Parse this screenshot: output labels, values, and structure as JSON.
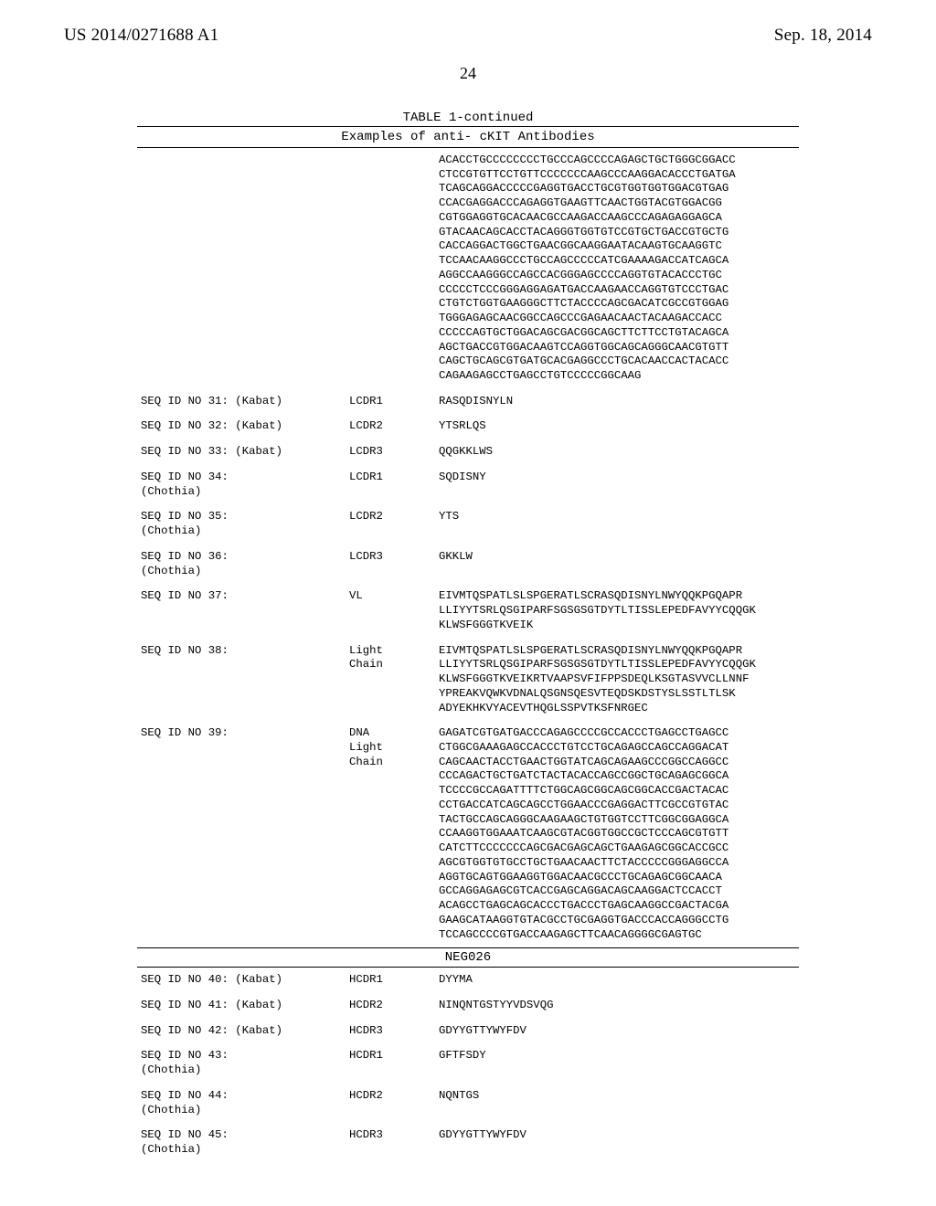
{
  "header": {
    "left": "US 2014/0271688 A1",
    "right": "Sep. 18, 2014"
  },
  "page_number": "24",
  "table_title": "TABLE 1-continued",
  "table_subtitle": "Examples of anti- cKIT Antibodies",
  "top_block_lines": [
    "ACACCTGCCCCCCCCTGCCCAGCCCCAGAGCTGCTGGGCGGACC",
    "CTCCGTGTTCCTGTTCCCCCCCAAGCCCAAGGACACCCTGATGA",
    "TCAGCAGGACCCCCGAGGTGACCTGCGTGGTGGTGGACGTGAG",
    "CCACGAGGACCCAGAGGTGAAGTTCAACTGGTACGTGGACGG",
    "CGTGGAGGTGCACAACGCCAAGACCAAGCCCAGAGAGGAGCA",
    "GTACAACAGCACCTACAGGGTGGTGTCCGTGCTGACCGTGCTG",
    "CACCAGGACTGGCTGAACGGCAAGGAATACAAGTGCAAGGTC",
    "TCCAACAAGGCCCTGCCAGCCCCCATCGAAAAGACCATCAGCA",
    "AGGCCAAGGGCCAGCCACGGGAGCCCCAGGTGTACACCCTGC",
    "CCCCCTCCCGGGAGGAGATGACCAAGAACCAGGTGTCCCTGAC",
    "CTGTCTGGTGAAGGGCTTCTACCCCAGCGACATCGCCGTGGAG",
    "TGGGAGAGCAACGGCCAGCCCGAGAACAACTACAAGACCACC",
    "CCCCCAGTGCTGGACAGCGACGGCAGCTTCTTCCTGTACAGCA",
    "AGCTGACCGTGGACAAGTCCAGGTGGCAGCAGGGCAACGTGTT",
    "CAGCTGCAGCGTGATGCACGAGGCCCTGCACAACCACTACACC",
    "CAGAAGAGCCTGAGCCTGTCCCCCGGCAAG"
  ],
  "rows_a": [
    {
      "id": "SEQ ID NO 31: (Kabat)",
      "region": "LCDR1",
      "seq": "RASQDISNYLN"
    },
    {
      "id": "SEQ ID NO 32: (Kabat)",
      "region": "LCDR2",
      "seq": "YTSRLQS"
    },
    {
      "id": "SEQ ID NO 33: (Kabat)",
      "region": "LCDR3",
      "seq": "QQGKKLWS"
    },
    {
      "id": "SEQ ID NO 34:\n(Chothia)",
      "region": "LCDR1",
      "seq": "SQDISNY"
    },
    {
      "id": "SEQ ID NO 35:\n(Chothia)",
      "region": "LCDR2",
      "seq": "YTS"
    },
    {
      "id": "SEQ ID NO 36:\n(Chothia)",
      "region": "LCDR3",
      "seq": "GKKLW"
    },
    {
      "id": "SEQ ID NO 37:",
      "region": "VL",
      "seq": "EIVMTQSPATLSLSPGERATLSCRASQDISNYLNWYQQKPGQAPR\nLLIYYTSRLQSGIPARFSGSGSGTDYTLTISSLEPEDFAVYYCQQGK\nKLWSFGGGTKVEIK"
    },
    {
      "id": "SEQ ID NO 38:",
      "region": "Light\nChain",
      "seq": "EIVMTQSPATLSLSPGERATLSCRASQDISNYLNWYQQKPGQAPR\nLLIYYTSRLQSGIPARFSGSGSGTDYTLTISSLEPEDFAVYYCQQGK\nKLWSFGGGTKVEIKRTVAAPSVFIFPPSDEQLKSGTASVVCLLNNF\nYPREAKVQWKVDNALQSGNSQESVTEQDSKDSTYSLSSTLTLSK\nADYEKHKVYACEVTHQGLSSPVTKSFNRGEC"
    },
    {
      "id": "SEQ ID NO 39:",
      "region": "DNA\nLight\nChain",
      "seq": "GAGATCGTGATGACCCAGAGCCCCGCCACCCTGAGCCTGAGCC\nCTGGCGAAAGAGCCACCCTGTCCTGCAGAGCCAGCCAGGACAT\nCAGCAACTACCTGAACTGGTATCAGCAGAAGCCCGGCCAGGCC\nCCCAGACTGCTGATCTACTACACCAGCCGGCTGCAGAGCGGCA\nTCCCCGCCAGATTTTCTGGCAGCGGCAGCGGCACCGACTACAC\nCCTGACCATCAGCAGCCTGGAACCCGAGGACTTCGCCGTGTAC\nTACTGCCAGCAGGGCAAGAAGCTGTGGTCCTTCGGCGGAGGCA\nCCAAGGTGGAAATCAAGCGTACGGTGGCCGCTCCCAGCGTGTT\nCATCTTCCCCCCCAGCGACGAGCAGCTGAAGAGCGGCACCGCC\nAGCGTGGTGTGCCTGCTGAACAACTTCTACCCCCGGGAGGCCA\nAGGTGCAGTGGAAGGTGGACAACGCCCTGCAGAGCGGCAACA\nGCCAGGAGAGCGTCACCGAGCAGGACAGCAAGGACTCCACCT\nACAGCCTGAGCAGCACCCTGACCCTGAGCAAGGCCGACTACGA\nGAAGCATAAGGTGTACGCCTGCGAGGTGACCCACCAGGGCCTG\nTCCAGCCCCGTGACCAAGAGCTTCAACAGGGGCGAGTGC"
    }
  ],
  "neg_header": "NEG026",
  "rows_b": [
    {
      "id": "SEQ ID NO 40: (Kabat)",
      "region": "HCDR1",
      "seq": "DYYMA"
    },
    {
      "id": "SEQ ID NO 41: (Kabat)",
      "region": "HCDR2",
      "seq": "NINQNTGSTYYVDSVQG"
    },
    {
      "id": "SEQ ID NO 42: (Kabat)",
      "region": "HCDR3",
      "seq": "GDYYGTTYWYFDV"
    },
    {
      "id": "SEQ ID NO 43:\n(Chothia)",
      "region": "HCDR1",
      "seq": "GFTFSDY"
    },
    {
      "id": "SEQ ID NO 44:\n(Chothia)",
      "region": "HCDR2",
      "seq": "NQNTGS"
    },
    {
      "id": "SEQ ID NO 45:\n(Chothia)",
      "region": "HCDR3",
      "seq": "GDYYGTTYWYFDV"
    }
  ]
}
